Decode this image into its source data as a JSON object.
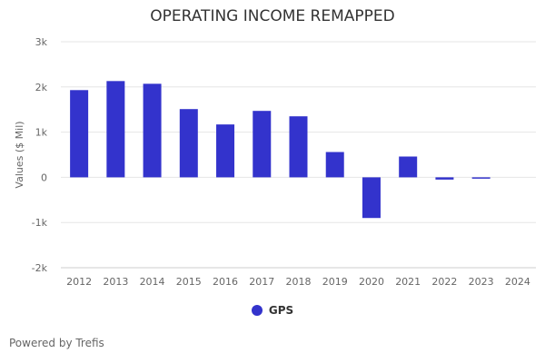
{
  "chart_data": {
    "type": "bar",
    "title": "OPERATING INCOME REMAPPED",
    "xlabel": "",
    "ylabel": "Values ($ Mil)",
    "ylim": [
      -2000,
      3000
    ],
    "yticks": [
      -2000,
      -1000,
      0,
      1000,
      2000,
      3000
    ],
    "ytick_labels": [
      "-2k",
      "-1k",
      "0",
      "1k",
      "2k",
      "3k"
    ],
    "grid": true,
    "legend_position": "bottom",
    "categories": [
      "2012",
      "2013",
      "2014",
      "2015",
      "2016",
      "2017",
      "2018",
      "2019",
      "2020",
      "2021",
      "2022",
      "2023",
      "2024"
    ],
    "series": [
      {
        "name": "GPS",
        "color": "#3333cc",
        "values": [
          1930,
          2130,
          2070,
          1510,
          1170,
          1470,
          1350,
          560,
          -900,
          460,
          -50,
          -30,
          null
        ]
      }
    ]
  },
  "credit": "Powered by Trefis"
}
